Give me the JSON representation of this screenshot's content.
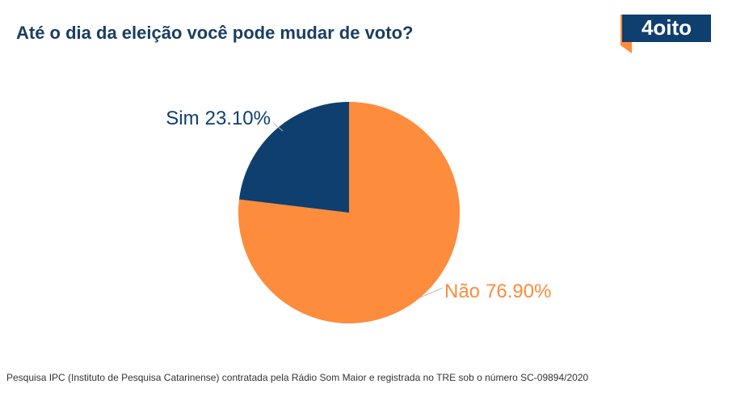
{
  "chart_data": {
    "type": "pie",
    "title": "Até o dia da eleição você pode mudar de voto?",
    "categories": [
      "Não",
      "Sim"
    ],
    "values": [
      76.9,
      23.1
    ],
    "value_labels": [
      "76.90%",
      "23.10%"
    ],
    "colors": [
      "#fd8c3c",
      "#0f3f6e"
    ],
    "source": "Pesquisa IPC (Instituto de Pesquisa Catarinense) contratada pela Rádio Som Maior e registrada no TRE sob o número SC-09894/2020",
    "logo": "4oito"
  }
}
